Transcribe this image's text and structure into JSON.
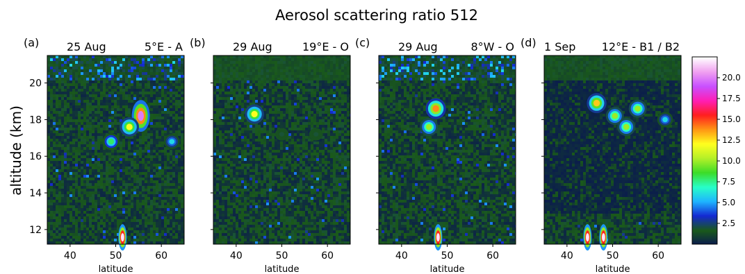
{
  "figure": {
    "title": "Aerosol scattering ratio 512",
    "ylabel": "altitude (km)",
    "xlabel": "latitude"
  },
  "panels": [
    {
      "letter": "(a)",
      "date": "25 Aug",
      "location": "5°E - A"
    },
    {
      "letter": "(b)",
      "date": "29 Aug",
      "location": "19°E - O"
    },
    {
      "letter": "(c)",
      "date": "29 Aug",
      "location": "8°W - O"
    },
    {
      "letter": "(d)",
      "date": "1 Sep",
      "location": "12°E - B1 / B2"
    }
  ],
  "axes": {
    "x_ticks": [
      "40",
      "50",
      "60"
    ],
    "y_ticks": [
      "12",
      "14",
      "16",
      "18",
      "20"
    ]
  },
  "colorbar": {
    "ticks": [
      "2.5",
      "5.0",
      "7.5",
      "10.0",
      "12.5",
      "15.0",
      "17.5",
      "20.0"
    ],
    "colormap": [
      "#0a1a4e",
      "#1a5a1a",
      "#1428d2",
      "#1eb4ff",
      "#28ffc8",
      "#3cdc28",
      "#b4f028",
      "#ffff1e",
      "#ff9614",
      "#ff1e1e",
      "#ff1eb4",
      "#c850ff",
      "#f0a0f0",
      "#ffffff"
    ]
  },
  "chart_data": [
    {
      "type": "heatmap",
      "title": "25 Aug    5°E - A",
      "xlabel": "latitude",
      "ylabel": "altitude (km)",
      "xlim": [
        35,
        65
      ],
      "ylim": [
        11.2,
        21.5
      ],
      "colorbar_range": [
        0,
        22.5
      ],
      "features": [
        {
          "lat": 55.5,
          "alt": 18.2,
          "peak_ratio": 20
        },
        {
          "lat": 53.0,
          "alt": 17.6,
          "peak_ratio": 12
        },
        {
          "lat": 49.0,
          "alt": 16.8,
          "peak_ratio": 8
        },
        {
          "lat": 62.3,
          "alt": 16.8,
          "peak_ratio": 6
        },
        {
          "lat": 51.5,
          "alt": 11.8,
          "peak_ratio": 22
        }
      ]
    },
    {
      "type": "heatmap",
      "title": "29 Aug    19°E - O",
      "xlabel": "latitude",
      "xlim": [
        35,
        65
      ],
      "ylim": [
        11.2,
        21.5
      ],
      "colorbar_range": [
        0,
        22.5
      ],
      "features": [
        {
          "lat": 44.0,
          "alt": 18.3,
          "peak_ratio": 12
        },
        {
          "lat": 50.0,
          "alt": 17.2,
          "peak_ratio": 2
        },
        {
          "lat": 57.5,
          "alt": 17.2,
          "peak_ratio": 2
        }
      ]
    },
    {
      "type": "heatmap",
      "title": "29 Aug    8°W - O",
      "xlabel": "latitude",
      "xlim": [
        35,
        65
      ],
      "ylim": [
        11.2,
        21.5
      ],
      "colorbar_range": [
        0,
        22.5
      ],
      "features": [
        {
          "lat": 47.5,
          "alt": 18.6,
          "peak_ratio": 14
        },
        {
          "lat": 46.0,
          "alt": 17.6,
          "peak_ratio": 10
        },
        {
          "lat": 48.0,
          "alt": 11.8,
          "peak_ratio": 22
        }
      ]
    },
    {
      "type": "heatmap",
      "title": "1 Sep    12°E - B1 / B2",
      "xlabel": "latitude",
      "xlim": [
        35,
        65
      ],
      "ylim": [
        11.2,
        21.5
      ],
      "colorbar_range": [
        0,
        22.5
      ],
      "features": [
        {
          "lat": 46.5,
          "alt": 18.9,
          "peak_ratio": 13
        },
        {
          "lat": 50.5,
          "alt": 18.2,
          "peak_ratio": 10
        },
        {
          "lat": 55.5,
          "alt": 18.6,
          "peak_ratio": 10
        },
        {
          "lat": 53.0,
          "alt": 17.6,
          "peak_ratio": 10
        },
        {
          "lat": 61.5,
          "alt": 18.0,
          "peak_ratio": 6
        },
        {
          "lat": 44.5,
          "alt": 11.8,
          "peak_ratio": 22
        },
        {
          "lat": 48.0,
          "alt": 11.8,
          "peak_ratio": 22
        }
      ]
    }
  ]
}
